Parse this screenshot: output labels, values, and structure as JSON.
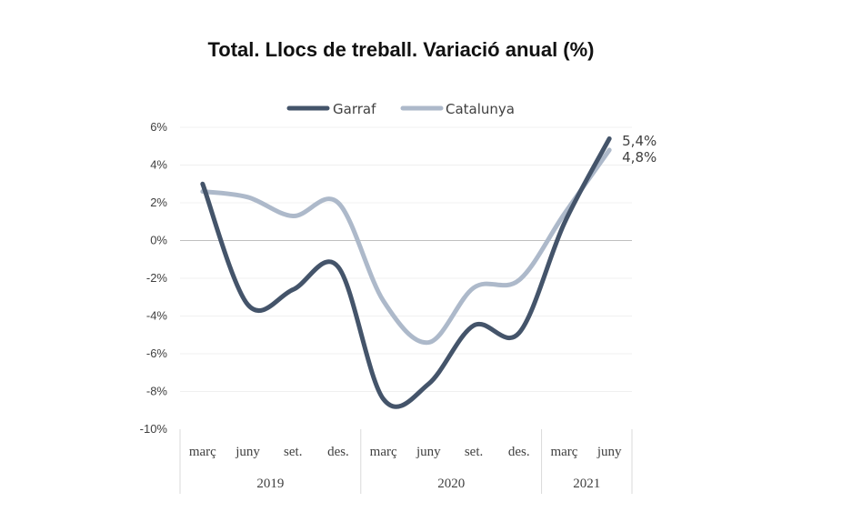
{
  "chart_data": {
    "type": "line",
    "title": "Total. Llocs de treball. Variació anual (%)",
    "categories": [
      "març",
      "juny",
      "set.",
      "des.",
      "març",
      "juny",
      "set.",
      "des.",
      "març",
      "juny"
    ],
    "category_groups": [
      {
        "label": "2019",
        "span": 4
      },
      {
        "label": "2020",
        "span": 4
      },
      {
        "label": "2021",
        "span": 2
      }
    ],
    "series": [
      {
        "name": "Garraf",
        "color": "#44546a",
        "values": [
          3.0,
          -3.4,
          -2.6,
          -1.4,
          -8.4,
          -7.6,
          -4.5,
          -4.9,
          0.9,
          5.4
        ]
      },
      {
        "name": "Catalunya",
        "color": "#adb9ca",
        "values": [
          2.6,
          2.3,
          1.3,
          2.0,
          -3.2,
          -5.4,
          -2.5,
          -2.1,
          1.4,
          4.8
        ]
      }
    ],
    "end_labels": [
      "5,4%",
      "4,8%"
    ],
    "yticks": [
      "6%",
      "4%",
      "2%",
      "0%",
      "-2%",
      "-4%",
      "-6%",
      "-8%",
      "-10%"
    ],
    "ylim": [
      -10,
      6
    ],
    "legend_position": "top"
  }
}
